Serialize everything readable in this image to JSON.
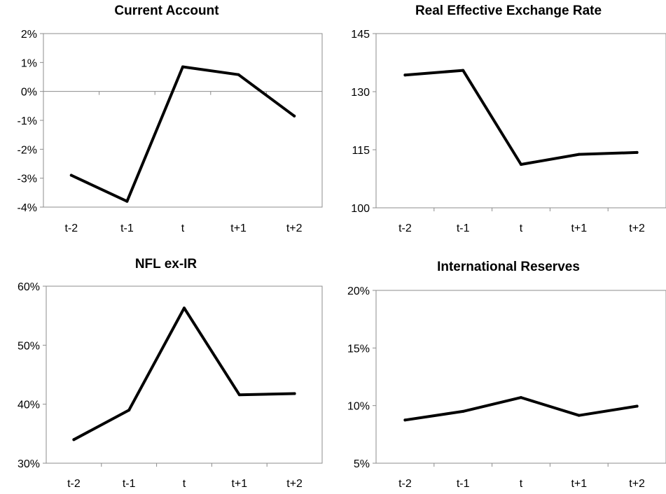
{
  "chart_data": [
    {
      "type": "line",
      "title": "Current Account",
      "categories": [
        "t-2",
        "t-1",
        "t",
        "t+1",
        "t+2"
      ],
      "values": [
        -2.9,
        -3.8,
        0.85,
        0.58,
        -0.85
      ],
      "ylim": [
        -4,
        2
      ],
      "yticks": [
        2,
        1,
        0,
        -1,
        -2,
        -3,
        -4
      ],
      "ytick_labels": [
        "2%",
        "1%",
        "0%",
        "-1%",
        "-2%",
        "-3%",
        "-4%"
      ],
      "zero_line": true,
      "series_color": "#000000",
      "frame_color": "#8c8c8c"
    },
    {
      "type": "line",
      "title": "Real Effective Exchange Rate",
      "categories": [
        "t-2",
        "t-1",
        "t",
        "t+1",
        "t+2"
      ],
      "values": [
        134.3,
        135.5,
        111.2,
        113.8,
        114.3
      ],
      "ylim": [
        100,
        145
      ],
      "yticks": [
        145,
        130,
        115,
        100
      ],
      "ytick_labels": [
        "145",
        "130",
        "115",
        "100"
      ],
      "zero_line": false,
      "series_color": "#000000",
      "frame_color": "#8c8c8c"
    },
    {
      "type": "line",
      "title": "NFL ex-IR",
      "categories": [
        "t-2",
        "t-1",
        "t",
        "t+1",
        "t+2"
      ],
      "values": [
        34.0,
        39.0,
        56.3,
        41.6,
        41.8
      ],
      "ylim": [
        30,
        60
      ],
      "yticks": [
        60,
        50,
        40,
        30
      ],
      "ytick_labels": [
        "60%",
        "50%",
        "40%",
        "30%"
      ],
      "zero_line": false,
      "series_color": "#000000",
      "frame_color": "#8c8c8c"
    },
    {
      "type": "line",
      "title": "International Reserves",
      "categories": [
        "t-2",
        "t-1",
        "t",
        "t+1",
        "t+2"
      ],
      "values": [
        8.75,
        9.5,
        10.7,
        9.15,
        9.95
      ],
      "ylim": [
        5,
        20
      ],
      "yticks": [
        20,
        15,
        10,
        5
      ],
      "ytick_labels": [
        "20%",
        "15%",
        "10%",
        "5%"
      ],
      "zero_line": false,
      "series_color": "#000000",
      "frame_color": "#8c8c8c"
    }
  ]
}
